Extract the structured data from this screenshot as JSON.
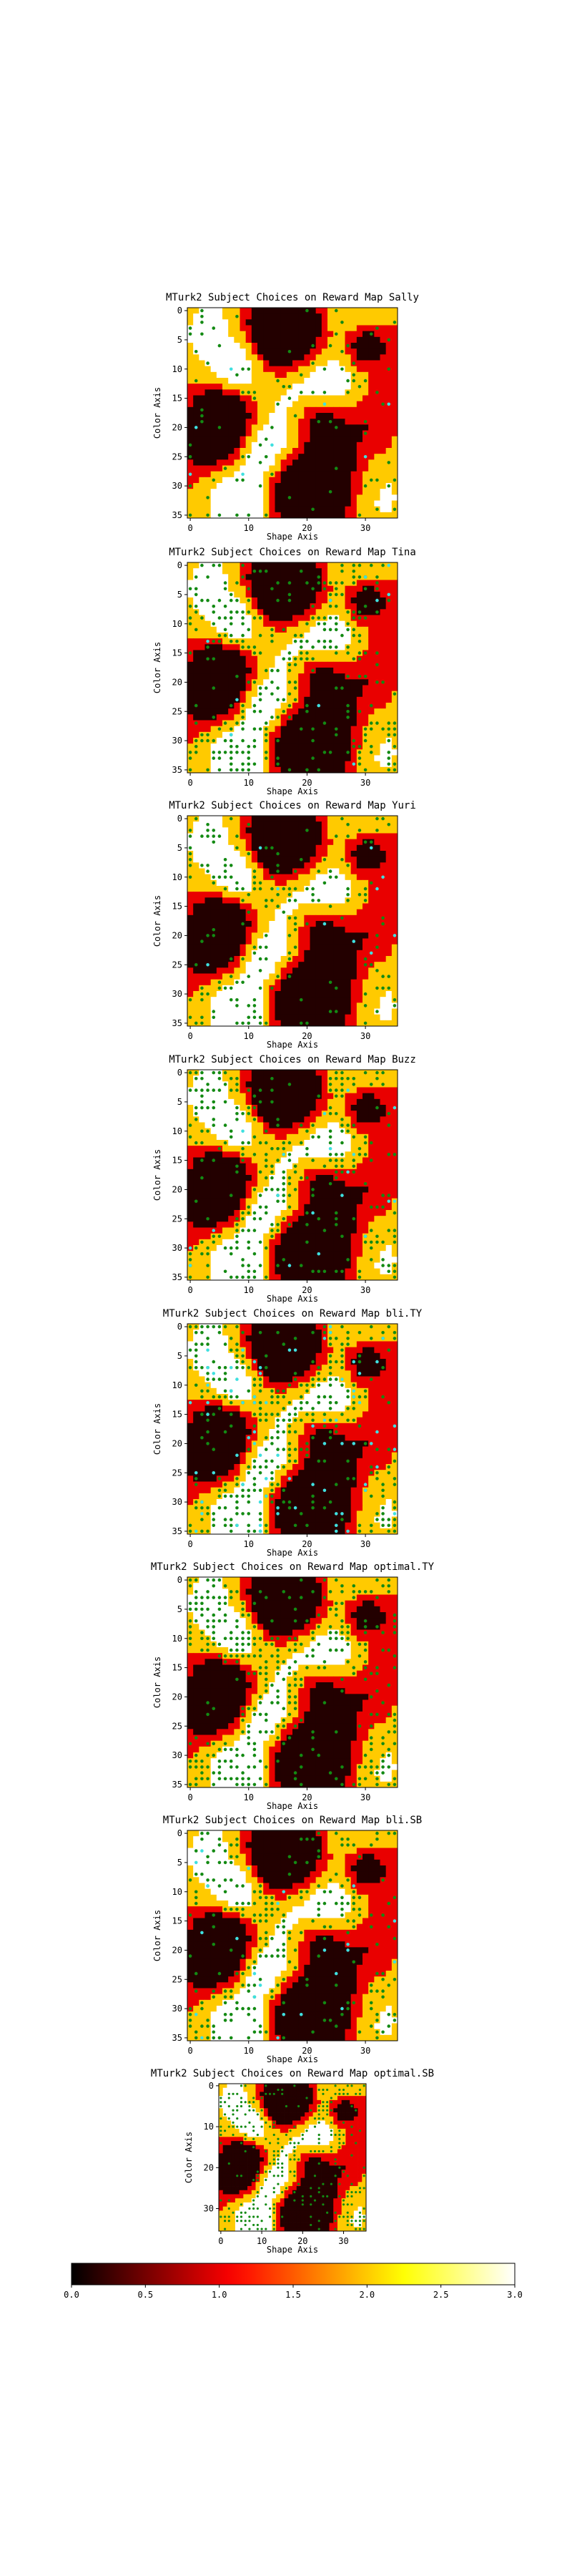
{
  "chart_data": {
    "type": "heatmap",
    "grid_size": 36,
    "value_range": [
      0.0,
      3.0
    ],
    "colormap": "hot",
    "xlabel": "Shape Axis",
    "ylabel": "Color Axis",
    "colorbar": {
      "ticks": [
        "0.0",
        "0.5",
        "1.0",
        "1.5",
        "2.0",
        "2.5",
        "3.0"
      ]
    },
    "panels": [
      {
        "title": "MTurk2 Subject Choices on Reward Map Sally",
        "xticks": [
          "0",
          "10",
          "20",
          "30"
        ],
        "yticks": [
          "0",
          "5",
          "10",
          "15",
          "20",
          "25",
          "30",
          "35"
        ],
        "marker_density": 0.08,
        "cyan_density": 0.005
      },
      {
        "title": "MTurk2 Subject Choices on Reward Map Tina",
        "xticks": [
          "0",
          "10",
          "20",
          "30"
        ],
        "yticks": [
          "0",
          "5",
          "10",
          "15",
          "20",
          "25",
          "30",
          "35"
        ],
        "marker_density": 0.28,
        "cyan_density": 0.01
      },
      {
        "title": "MTurk2 Subject Choices on Reward Map Yuri",
        "xticks": [
          "0",
          "10",
          "20",
          "30"
        ],
        "yticks": [
          "0",
          "5",
          "10",
          "15",
          "20",
          "25",
          "30",
          "35"
        ],
        "marker_density": 0.16,
        "cyan_density": 0.005
      },
      {
        "title": "MTurk2 Subject Choices on Reward Map Buzz",
        "xticks": [
          "0",
          "10",
          "20",
          "30"
        ],
        "yticks": [
          "0",
          "5",
          "10",
          "15",
          "20",
          "25",
          "30",
          "35"
        ],
        "marker_density": 0.24,
        "cyan_density": 0.015
      },
      {
        "title": "MTurk2 Subject Choices on Reward Map bli.TY",
        "xticks": [
          "0",
          "10",
          "20",
          "30"
        ],
        "yticks": [
          "0",
          "5",
          "10",
          "15",
          "20",
          "25",
          "30",
          "35"
        ],
        "marker_density": 0.3,
        "cyan_density": 0.06
      },
      {
        "title": "MTurk2 Subject Choices on Reward Map optimal.TY",
        "xticks": [
          "0",
          "10",
          "20",
          "30"
        ],
        "yticks": [
          "0",
          "5",
          "10",
          "15",
          "20",
          "25",
          "30",
          "35"
        ],
        "marker_density": 0.3,
        "cyan_density": 0.0
      },
      {
        "title": "MTurk2 Subject Choices on Reward Map bli.SB",
        "xticks": [
          "0",
          "10",
          "20",
          "30"
        ],
        "yticks": [
          "0",
          "5",
          "10",
          "15",
          "20",
          "25",
          "30",
          "35"
        ],
        "marker_density": 0.2,
        "cyan_density": 0.02
      },
      {
        "title": "MTurk2 Subject Choices on Reward Map optimal.SB",
        "xticks": [
          "0",
          "10",
          "20",
          "30"
        ],
        "yticks": [
          "0",
          "10",
          "20",
          "30"
        ],
        "marker_density": 0.26,
        "cyan_density": 0.0
      }
    ]
  }
}
